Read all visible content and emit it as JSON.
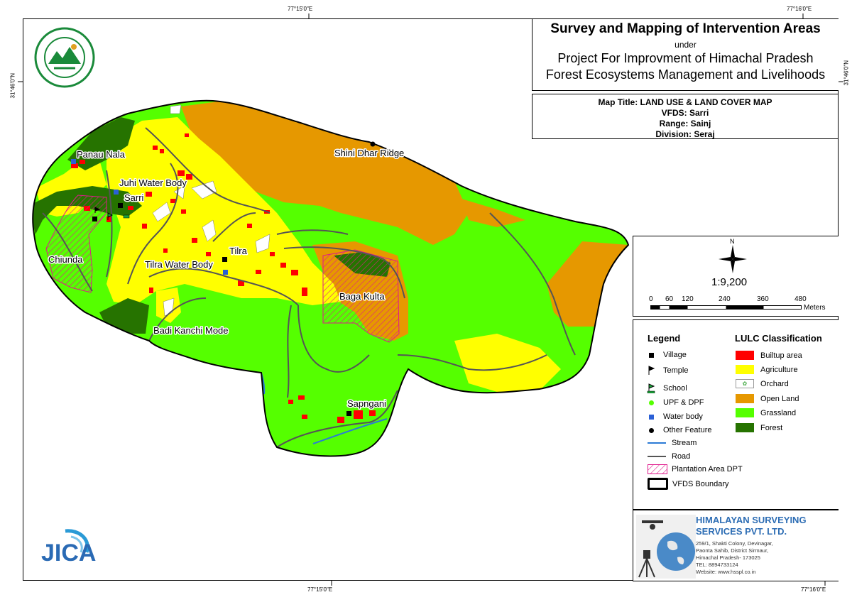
{
  "coords": {
    "top_left": "77°15'0\"E",
    "top_right": "77°16'0\"E",
    "bottom_left": "77°15'0\"E",
    "bottom_right": "77°16'0\"E",
    "left": "31°46'0\"N",
    "right": "31°46'0\"N"
  },
  "title": {
    "line1": "Survey and Mapping of Intervention Areas",
    "line2": "under",
    "line3": "Project For Improvment of Himachal Pradesh",
    "line4": "Forest Ecosystems Management and Livelihoods"
  },
  "info": {
    "map_title": "Map Title: LAND USE & LAND COVER MAP",
    "vfds": "VFDS: Sarri",
    "range": "Range: Sainj",
    "division": "Division: Seraj"
  },
  "north_label": "N",
  "scale": {
    "ratio": "1:9,200",
    "ticks": [
      "0",
      "60",
      "120",
      "240",
      "360",
      "480"
    ],
    "unit": "Meters"
  },
  "legend": {
    "heading": "Legend",
    "items": [
      {
        "label": "Village",
        "icon": "village-square-icon"
      },
      {
        "label": "Temple",
        "icon": "temple-flag-icon"
      },
      {
        "label": "School",
        "icon": "school-flag-icon"
      },
      {
        "label": "UPF & DPF",
        "icon": "green-dot-icon"
      },
      {
        "label": "Water body",
        "icon": "blue-square-icon"
      },
      {
        "label": "Other Feature",
        "icon": "black-dot-icon"
      },
      {
        "label": "Stream",
        "icon": "blue-line-icon"
      },
      {
        "label": "Road",
        "icon": "grey-line-icon"
      },
      {
        "label": "Plantation Area DPT",
        "icon": "hatched-box-icon"
      },
      {
        "label": "VFDS Boundary",
        "icon": "boundary-box-icon"
      }
    ]
  },
  "lulc": {
    "heading": "LULC Classification",
    "classes": [
      {
        "label": "Builtup area",
        "color": "#ff0000"
      },
      {
        "label": "Agriculture",
        "color": "#ffff00"
      },
      {
        "label": "Orchard",
        "color": "#ffffff"
      },
      {
        "label": "Open Land",
        "color": "#e69800"
      },
      {
        "label": "Grassland",
        "color": "#55ff00"
      },
      {
        "label": "Forest",
        "color": "#267300"
      }
    ]
  },
  "map_labels": {
    "panau_nala": "Panau Nala",
    "juhi": "Juhi Water Body",
    "sarri": "Sarri",
    "shini": "Shini Dhar Ridge",
    "chiunda": "Chiunda",
    "tilra_wb": "Tilra Water Body",
    "tilra": "Tilra",
    "baga": "Baga Kulta",
    "badi": "Badi Kanchi Mode",
    "sapngani": "Sapngani"
  },
  "company": {
    "name1": "HIMALAYAN SURVEYING",
    "name2": "SERVICES PVT. LTD.",
    "addr1": "259/1, Shakti Colony, Devinagar,",
    "addr2": "Paonta Sahib, District Sirmaur,",
    "addr3": "Himachal Pradesh- 173025",
    "tel": "TEL: 8894733124",
    "web": "Website: www.hsspl.co.in"
  },
  "logos": {
    "top_left": "forest-department-emblem",
    "bottom_left": "jica-logo",
    "jica_text": "JICA"
  },
  "colors": {
    "builtup": "#ff0000",
    "agriculture": "#ffff00",
    "open_land": "#e69800",
    "grassland": "#55ff00",
    "forest": "#267300",
    "stream": "#2b7bd6",
    "road": "#555555",
    "plantation": "#e01a8c",
    "company_blue": "#2d6db4"
  }
}
